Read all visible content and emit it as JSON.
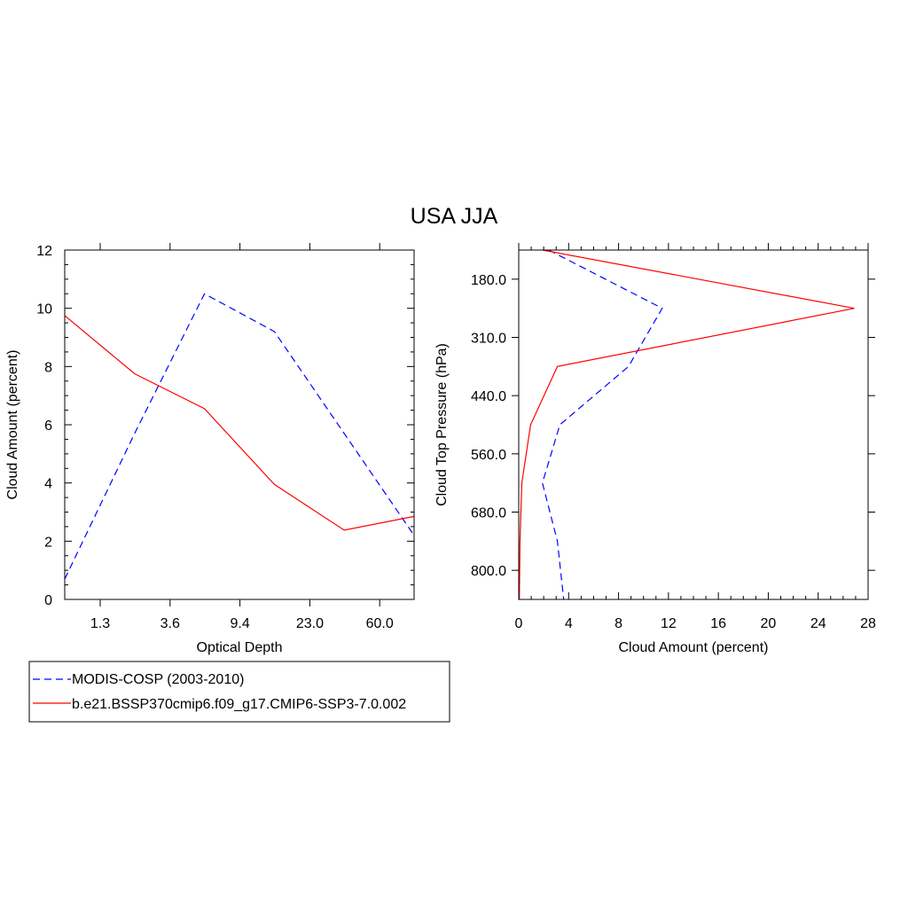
{
  "figure": {
    "title": "USA JJA",
    "legend": [
      {
        "label": "MODIS-COSP (2003-2010)",
        "color": "#0000ff",
        "dash": "dashed"
      },
      {
        "label": "b.e21.BSSP370cmip6.f09_g17.CMIP6-SSP3-7.0.002",
        "color": "#ff0000",
        "dash": "solid"
      }
    ]
  },
  "chart_data": [
    {
      "type": "line",
      "xlabel": "Optical Depth",
      "ylabel": "Cloud Amount (percent)",
      "ylim": [
        0,
        12
      ],
      "y_ticks": [
        "0",
        "2",
        "4",
        "6",
        "8",
        "10",
        "12"
      ],
      "x_tick_labels": [
        "1.3",
        "3.6",
        "9.4",
        "23.0",
        "60.0"
      ],
      "x_bins": 5,
      "series": [
        {
          "name": "MODIS-COSP (2003-2010)",
          "color": "#0000ff",
          "dash": "dashed",
          "x": [
            0,
            1,
            2,
            3,
            4,
            5
          ],
          "values": [
            0.7,
            5.7,
            10.5,
            9.2,
            5.7,
            2.2
          ]
        },
        {
          "name": "b.e21.BSSP370cmip6.f09_g17.CMIP6-SSP3-7.0.002",
          "color": "#ff0000",
          "dash": "solid",
          "x": [
            0,
            1,
            2,
            3,
            4,
            5
          ],
          "values": [
            9.75,
            7.75,
            6.55,
            3.95,
            2.38,
            2.85
          ]
        }
      ]
    },
    {
      "type": "line",
      "xlabel": "Cloud Amount (percent)",
      "ylabel": "Cloud Top Pressure (hPa)",
      "xlim": [
        0,
        28
      ],
      "x_ticks": [
        "0",
        "4",
        "8",
        "12",
        "16",
        "20",
        "24",
        "28"
      ],
      "y_tick_labels": [
        "180.0",
        "310.0",
        "440.0",
        "560.0",
        "680.0",
        "800.0"
      ],
      "y_bins": 6,
      "series": [
        {
          "name": "MODIS-COSP (2003-2010)",
          "color": "#0000ff",
          "dash": "dashed",
          "levels": [
            0,
            1,
            2,
            3,
            4,
            5,
            6
          ],
          "values": [
            2.4,
            11.5,
            8.8,
            3.3,
            1.9,
            3.1,
            3.6
          ]
        },
        {
          "name": "b.e21.BSSP370cmip6.f09_g17.CMIP6-SSP3-7.0.002",
          "color": "#ff0000",
          "dash": "solid",
          "levels": [
            0,
            1,
            2,
            3,
            4,
            5,
            6
          ],
          "values": [
            1.9,
            26.9,
            3.1,
            0.95,
            0.25,
            0.1,
            0.05
          ]
        }
      ]
    }
  ]
}
